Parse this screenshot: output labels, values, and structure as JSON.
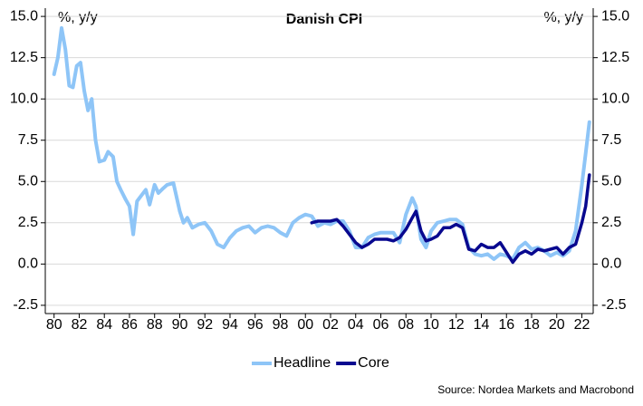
{
  "chart_data": {
    "type": "line",
    "title": "Danish CPI",
    "y_label": "%, y/y",
    "y2_label": "%, y/y",
    "source": "Source: Nordea Markets and Macrobond",
    "x": [
      1980.0,
      1980.3,
      1980.6,
      1980.9,
      1981.2,
      1981.5,
      1981.8,
      1982.1,
      1982.4,
      1982.7,
      1983.0,
      1983.3,
      1983.6,
      1984.0,
      1984.3,
      1984.7,
      1985.0,
      1985.3,
      1985.7,
      1986.0,
      1986.3,
      1986.6,
      1987.0,
      1987.3,
      1987.6,
      1988.0,
      1988.3,
      1988.7,
      1989.0,
      1989.5,
      1990.0,
      1990.3,
      1990.6,
      1991.0,
      1991.5,
      1992.0,
      1992.5,
      1993.0,
      1993.5,
      1994.0,
      1994.5,
      1995.0,
      1995.5,
      1996.0,
      1996.5,
      1997.0,
      1997.5,
      1998.0,
      1998.5,
      1999.0,
      1999.5,
      2000.0,
      2000.5,
      2001.0,
      2001.5,
      2002.0,
      2002.5,
      2003.0,
      2003.5,
      2004.0,
      2004.5,
      2005.0,
      2005.5,
      2006.0,
      2006.5,
      2007.0,
      2007.5,
      2008.0,
      2008.5,
      2008.8,
      2009.2,
      2009.6,
      2010.0,
      2010.5,
      2011.0,
      2011.5,
      2012.0,
      2012.5,
      2013.0,
      2013.5,
      2014.0,
      2014.5,
      2015.0,
      2015.5,
      2016.0,
      2016.5,
      2017.0,
      2017.5,
      2018.0,
      2018.5,
      2019.0,
      2019.5,
      2020.0,
      2020.5,
      2021.0,
      2021.5,
      2022.0,
      2022.3,
      2022.6
    ],
    "series": [
      {
        "name": "Headline",
        "color": "#8ec5f7",
        "width": 4,
        "values": [
          11.5,
          12.5,
          14.3,
          13.0,
          10.8,
          10.7,
          12.0,
          12.2,
          10.5,
          9.3,
          10.0,
          7.5,
          6.2,
          6.3,
          6.8,
          6.5,
          5.0,
          4.5,
          3.9,
          3.5,
          1.8,
          3.8,
          4.2,
          4.5,
          3.6,
          4.8,
          4.3,
          4.6,
          4.8,
          4.9,
          3.2,
          2.5,
          2.8,
          2.2,
          2.4,
          2.5,
          2.0,
          1.2,
          1.0,
          1.6,
          2.0,
          2.2,
          2.3,
          1.9,
          2.2,
          2.3,
          2.2,
          1.9,
          1.7,
          2.5,
          2.8,
          3.0,
          2.9,
          2.3,
          2.5,
          2.4,
          2.6,
          2.6,
          2.0,
          1.0,
          1.0,
          1.6,
          1.8,
          1.9,
          1.9,
          1.9,
          1.3,
          3.0,
          4.0,
          3.5,
          1.5,
          1.0,
          2.0,
          2.5,
          2.6,
          2.7,
          2.7,
          2.4,
          1.0,
          0.6,
          0.5,
          0.6,
          0.3,
          0.6,
          0.5,
          0.3,
          1.0,
          1.3,
          0.9,
          1.0,
          0.8,
          0.5,
          0.7,
          0.5,
          0.8,
          2.0,
          4.8,
          6.7,
          8.6
        ]
      },
      {
        "name": "Core",
        "color": "#08088f",
        "width": 3.5,
        "values": [
          null,
          null,
          null,
          null,
          null,
          null,
          null,
          null,
          null,
          null,
          null,
          null,
          null,
          null,
          null,
          null,
          null,
          null,
          null,
          null,
          null,
          null,
          null,
          null,
          null,
          null,
          null,
          null,
          null,
          null,
          null,
          null,
          null,
          null,
          null,
          null,
          null,
          null,
          null,
          null,
          null,
          null,
          null,
          null,
          null,
          null,
          null,
          null,
          null,
          null,
          null,
          null,
          2.5,
          2.6,
          2.6,
          2.6,
          2.7,
          2.3,
          1.8,
          1.3,
          1.0,
          1.2,
          1.5,
          1.5,
          1.5,
          1.4,
          1.6,
          2.1,
          2.8,
          3.2,
          2.0,
          1.4,
          1.5,
          1.7,
          2.2,
          2.2,
          2.4,
          2.2,
          0.9,
          0.8,
          1.2,
          1.0,
          1.0,
          1.3,
          0.7,
          0.1,
          0.6,
          0.8,
          0.6,
          0.9,
          0.8,
          0.9,
          1.0,
          0.6,
          1.0,
          1.2,
          2.5,
          3.5,
          5.4
        ]
      }
    ],
    "xlim": [
      1979.3,
      2022.9
    ],
    "xticks": [
      {
        "value": 1980,
        "label": "80"
      },
      {
        "value": 1982,
        "label": "82"
      },
      {
        "value": 1984,
        "label": "84"
      },
      {
        "value": 1986,
        "label": "86"
      },
      {
        "value": 1988,
        "label": "88"
      },
      {
        "value": 1990,
        "label": "90"
      },
      {
        "value": 1992,
        "label": "92"
      },
      {
        "value": 1994,
        "label": "94"
      },
      {
        "value": 1996,
        "label": "96"
      },
      {
        "value": 1998,
        "label": "98"
      },
      {
        "value": 2000,
        "label": "00"
      },
      {
        "value": 2002,
        "label": "02"
      },
      {
        "value": 2004,
        "label": "04"
      },
      {
        "value": 2006,
        "label": "06"
      },
      {
        "value": 2008,
        "label": "08"
      },
      {
        "value": 2010,
        "label": "10"
      },
      {
        "value": 2012,
        "label": "12"
      },
      {
        "value": 2014,
        "label": "14"
      },
      {
        "value": 2016,
        "label": "16"
      },
      {
        "value": 2018,
        "label": "18"
      },
      {
        "value": 2020,
        "label": "20"
      },
      {
        "value": 2022,
        "label": "22"
      }
    ],
    "ylim": [
      -3,
      15.5
    ],
    "yticks": [
      {
        "value": 15,
        "label": "15.0"
      },
      12.5,
      {
        "value": 10,
        "label": "10.0"
      },
      7.5,
      {
        "value": 5,
        "label": "5.0"
      },
      2.5,
      {
        "value": 0,
        "label": "0.0"
      },
      -2.5
    ],
    "y2lim": [
      -3,
      15.5
    ],
    "y2ticks": [
      {
        "value": 15,
        "label": "15.0"
      },
      12.5,
      {
        "value": 10,
        "label": "10.0"
      },
      7.5,
      {
        "value": 5,
        "label": "5.0"
      },
      2.5,
      {
        "value": 0,
        "label": "0.0"
      },
      -2.5
    ],
    "grid": true,
    "legend": "bottom"
  }
}
